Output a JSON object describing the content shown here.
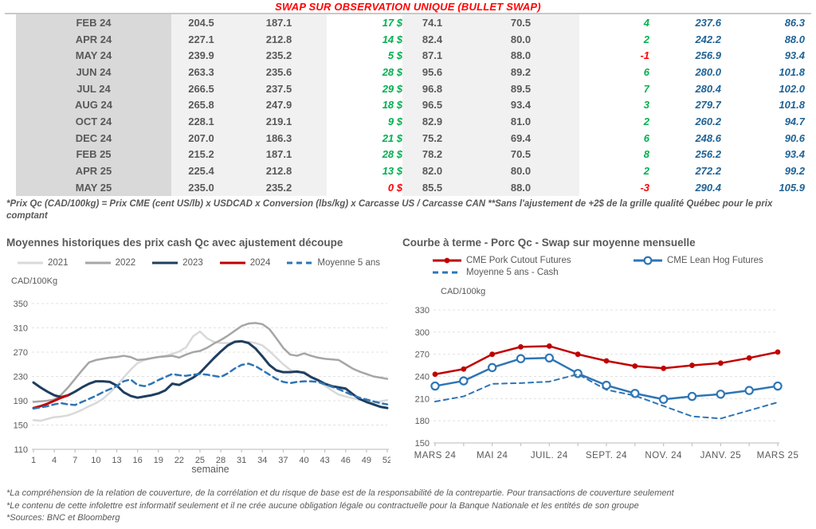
{
  "colors": {
    "title_red": "#FF0000",
    "gain_green": "#00B050",
    "gain_red": "#FF0000",
    "blue_value": "#1F6396",
    "table_text": "#595959",
    "navy_2023": "#1F3E5F",
    "dark_red": "#C00000",
    "steel_blue": "#2E75B6",
    "gray_2022": "#A6A6A6",
    "light_gray_2021": "#D9D9D9"
  },
  "table": {
    "title": "SWAP SUR OBSERVATION UNIQUE (BULLET SWAP)",
    "rows": [
      [
        "FEB 24",
        "204.5",
        "187.1",
        "17 $",
        "74.1",
        "70.5",
        "4",
        "237.6",
        "86.3"
      ],
      [
        "APR 24",
        "227.1",
        "212.8",
        "14 $",
        "82.4",
        "80.0",
        "2",
        "242.2",
        "88.0"
      ],
      [
        "MAY 24",
        "239.9",
        "235.2",
        "5 $",
        "87.1",
        "88.0",
        "-1",
        "256.9",
        "93.4"
      ],
      [
        "JUN 24",
        "263.3",
        "235.6",
        "28 $",
        "95.6",
        "89.2",
        "6",
        "280.0",
        "101.8"
      ],
      [
        "JUL 24",
        "266.5",
        "237.5",
        "29 $",
        "96.8",
        "89.5",
        "7",
        "280.4",
        "102.0"
      ],
      [
        "AUG 24",
        "265.8",
        "247.9",
        "18 $",
        "96.5",
        "93.4",
        "3",
        "279.7",
        "101.8"
      ],
      [
        "OCT 24",
        "228.1",
        "219.1",
        "9 $",
        "82.9",
        "81.0",
        "2",
        "260.2",
        "94.7"
      ],
      [
        "DEC 24",
        "207.0",
        "186.3",
        "21 $",
        "75.2",
        "69.4",
        "6",
        "248.6",
        "90.6"
      ],
      [
        "FEB 25",
        "215.2",
        "187.1",
        "28 $",
        "78.2",
        "70.5",
        "8",
        "256.2",
        "93.4"
      ],
      [
        "APR 25",
        "225.4",
        "212.8",
        "13 $",
        "82.0",
        "80.0",
        "2",
        "272.2",
        "99.2"
      ],
      [
        "MAY 25",
        "235.0",
        "235.2",
        "0 $",
        "85.5",
        "88.0",
        "-3",
        "290.4",
        "105.9"
      ]
    ],
    "footnote": "*Prix Qc (CAD/100kg) = Prix CME (cent US/lb) x USDCAD x Conversion (lbs/kg) x Carcasse US / Carcasse CAN **Sans l'ajustement de +2$ de la grille qualité Québec pour le prix comptant"
  },
  "chart_data": [
    {
      "type": "line",
      "title": "Moyennes historiques des prix cash Qc avec ajustement découpe",
      "unit_label": "CAD/100Kg",
      "xlabel": "semaine",
      "x_range": [
        1,
        52
      ],
      "x_ticks": [
        1,
        4,
        7,
        10,
        13,
        16,
        19,
        22,
        25,
        28,
        31,
        34,
        37,
        40,
        43,
        46,
        49,
        52
      ],
      "ylim": [
        110,
        350
      ],
      "ytick_step": 40,
      "grid": "horizontal-dashed",
      "legend_position": "top",
      "series": [
        {
          "name": "2021",
          "color": "#D9D9D9",
          "width": 2.5,
          "values": [
            158,
            157,
            160,
            163,
            164,
            166,
            170,
            175,
            181,
            186,
            193,
            203,
            215,
            228,
            241,
            252,
            257,
            260,
            262,
            264,
            267,
            271,
            278,
            296,
            304,
            293,
            287,
            285,
            285,
            286,
            287,
            287,
            285,
            281,
            272,
            261,
            250,
            241,
            236,
            238,
            230,
            223,
            215,
            207,
            200,
            197,
            194,
            192,
            189,
            187,
            189,
            191
          ]
        },
        {
          "name": "2022",
          "color": "#A6A6A6",
          "width": 2.5,
          "values": [
            188,
            189,
            190,
            192,
            200,
            212,
            226,
            240,
            253,
            257,
            259,
            261,
            262,
            264,
            262,
            257,
            258,
            260,
            262,
            263,
            264,
            261,
            266,
            270,
            272,
            277,
            284,
            290,
            297,
            305,
            313,
            317,
            318,
            316,
            308,
            293,
            277,
            266,
            264,
            268,
            264,
            261,
            259,
            258,
            257,
            250,
            243,
            238,
            234,
            230,
            228,
            226
          ]
        },
        {
          "name": "2023",
          "color": "#1F3E5F",
          "width": 3,
          "values": [
            220,
            212,
            205,
            199,
            196,
            199,
            205,
            212,
            218,
            222,
            222,
            221,
            215,
            204,
            198,
            195,
            197,
            199,
            202,
            207,
            218,
            216,
            222,
            228,
            236,
            248,
            260,
            271,
            281,
            287,
            288,
            285,
            276,
            263,
            249,
            240,
            237,
            237,
            238,
            236,
            229,
            224,
            218,
            214,
            212,
            210,
            201,
            193,
            188,
            184,
            180,
            178
          ]
        },
        {
          "name": "2024",
          "color": "#C00000",
          "width": 3,
          "values": [
            178,
            181,
            185,
            190,
            195,
            199
          ]
        },
        {
          "name": "Moyenne 5 ans",
          "color": "#2E75B6",
          "width": 2.5,
          "dash": "7 5",
          "values": [
            177,
            179,
            181,
            184,
            186,
            184,
            183,
            188,
            193,
            198,
            204,
            209,
            214,
            222,
            225,
            216,
            214,
            218,
            224,
            229,
            234,
            232,
            231,
            233,
            234,
            233,
            231,
            229,
            235,
            243,
            249,
            251,
            247,
            240,
            233,
            226,
            221,
            219,
            221,
            222,
            222,
            221,
            217,
            213,
            209,
            204,
            199,
            195,
            192,
            189,
            186,
            184
          ]
        }
      ]
    },
    {
      "type": "line",
      "title": "Courbe à terme - Porc Qc - Swap sur moyenne mensuelle",
      "unit_label": "CAD/100kg",
      "x_count": 13,
      "x_tick_labels": [
        "MARS 24",
        "MAI 24",
        "JUIL. 24",
        "SEPT. 24",
        "NOV. 24",
        "JANV. 25",
        "MARS 25"
      ],
      "x_label_every": 2,
      "ylim": [
        150,
        330
      ],
      "ytick_step": 30,
      "grid": "horizontal-dashed",
      "legend_position": "top",
      "series": [
        {
          "name": "CME Pork Cutout Futures",
          "color": "#C00000",
          "width": 2.5,
          "marker": "filled",
          "values": [
            243,
            250,
            270,
            280,
            281,
            270,
            261,
            254,
            251,
            255,
            258,
            265,
            273
          ]
        },
        {
          "name": "CME Lean Hog Futures",
          "color": "#2E75B6",
          "width": 2.5,
          "marker": "open",
          "values": [
            227,
            234,
            252,
            264,
            265,
            244,
            228,
            217,
            209,
            213,
            216,
            221,
            227
          ]
        },
        {
          "name": "Moyenne 5 ans - Cash",
          "color": "#2E75B6",
          "width": 2,
          "dash": "6 5",
          "values": [
            206,
            213,
            230,
            231,
            233,
            243,
            222,
            214,
            200,
            186,
            183,
            194,
            205
          ]
        }
      ]
    }
  ],
  "footer": {
    "lines": [
      "*La compréhension de la relation de couverture, de la corrélation et du risque de base est de la responsabilité de la contrepartie. Pour transactions de couverture seulement",
      "*Le contenu de cette infolettre est informatif seulement et il ne crée aucune obligation légale ou contractuelle pour la Banque Nationale et les entités de son groupe",
      "*Sources: BNC et Bloomberg"
    ]
  }
}
